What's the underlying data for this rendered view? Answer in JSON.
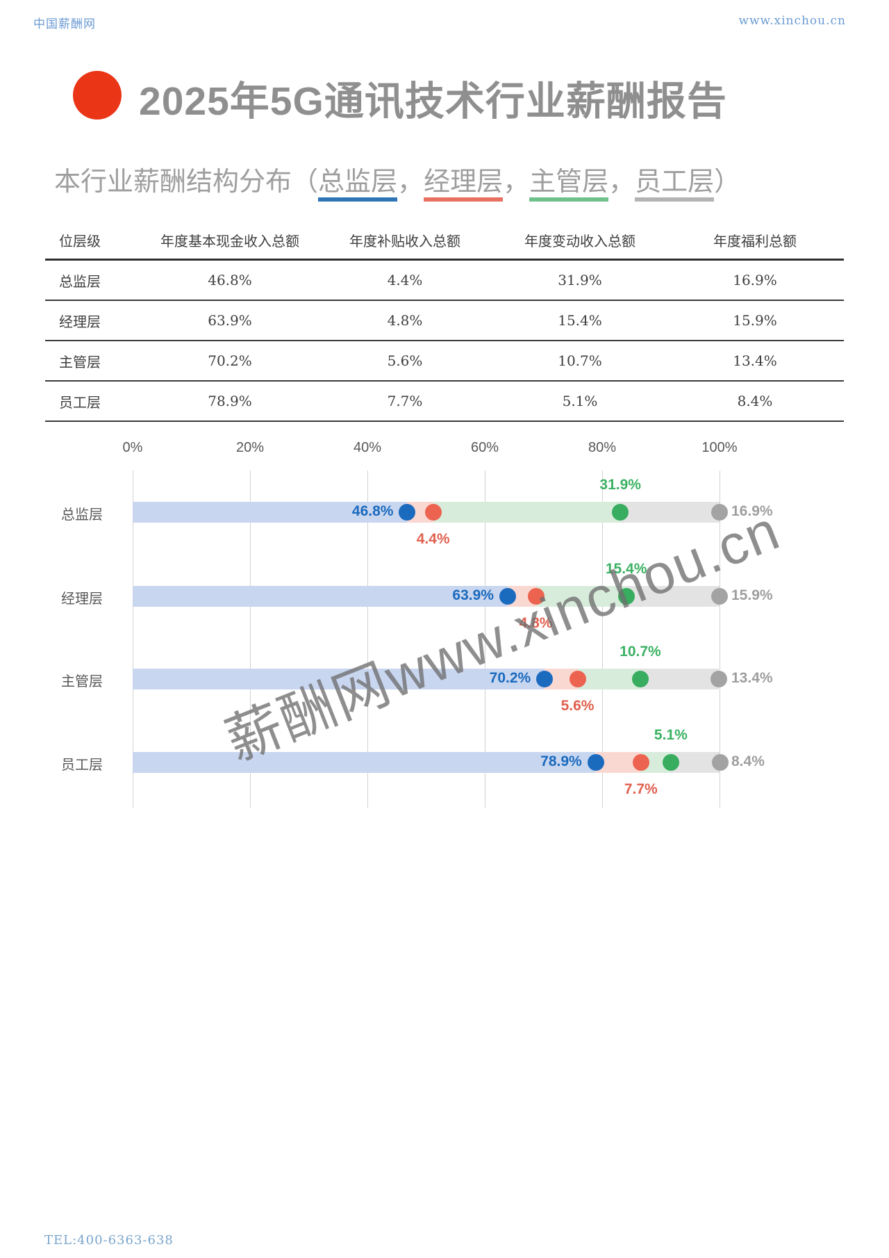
{
  "page": {
    "brand": "中国薪酬网",
    "site_url": "www.xinchou.cn",
    "title": "2025年5G通讯技术行业薪酬报告",
    "subtitle_prefix": "本行业薪酬结构分布",
    "subtitle_open": "（",
    "subtitle_comma": "，",
    "subtitle_close": "）",
    "watermark": "薪酬网www.xinchou.cn",
    "footer_tel": "TEL:400-6363-638"
  },
  "legend_groups": [
    {
      "label": "总监层",
      "underline": "#2e75b6"
    },
    {
      "label": "经理层",
      "underline": "#e8705f"
    },
    {
      "label": "主管层",
      "underline": "#6ec08c"
    },
    {
      "label": "员工层",
      "underline": "#b3b3b3"
    }
  ],
  "table": {
    "headers": [
      "位层级",
      "年度基本现金收入总额",
      "年度补贴收入总额",
      "年度变动收入总额",
      "年度福利总额"
    ],
    "rows": [
      {
        "label": "总监层",
        "values": [
          "46.8%",
          "4.4%",
          "31.9%",
          "16.9%"
        ]
      },
      {
        "label": "经理层",
        "values": [
          "63.9%",
          "4.8%",
          "15.4%",
          "15.9%"
        ]
      },
      {
        "label": "主管层",
        "values": [
          "70.2%",
          "5.6%",
          "10.7%",
          "13.4%"
        ]
      },
      {
        "label": "员工层",
        "values": [
          "78.9%",
          "7.7%",
          "5.1%",
          "8.4%"
        ]
      }
    ]
  },
  "chart_data": {
    "type": "bar",
    "orientation": "horizontal",
    "stacked": true,
    "title": "本行业薪酬结构分布",
    "categories": [
      "总监层",
      "经理层",
      "主管层",
      "员工层"
    ],
    "series": [
      {
        "name": "年度基本现金收入总额",
        "seg_color": "#c9d6ef",
        "dot_color": "#1a6abe",
        "label_color": "#1a6abe",
        "values": [
          46.8,
          63.9,
          70.2,
          78.9
        ]
      },
      {
        "name": "年度补贴收入总额",
        "seg_color": "#f9d8d2",
        "dot_color": "#ec6350",
        "label_color": "#e0604f",
        "values": [
          4.4,
          4.8,
          5.6,
          7.7
        ]
      },
      {
        "name": "年度变动收入总额",
        "seg_color": "#d8ecdc",
        "dot_color": "#38ac5f",
        "label_color": "#3bb163",
        "values": [
          31.9,
          15.4,
          10.7,
          5.1
        ]
      },
      {
        "name": "年度福利总额",
        "seg_color": "#e3e3e3",
        "dot_color": "#a3a3a3",
        "label_color": "#9e9e9e",
        "values": [
          16.9,
          15.9,
          13.4,
          8.4
        ]
      }
    ],
    "x_ticks": [
      "0%",
      "20%",
      "40%",
      "60%",
      "80%",
      "100%"
    ],
    "xlim": [
      0,
      100
    ],
    "grid": true,
    "legend_position": "subtitle-inline"
  }
}
